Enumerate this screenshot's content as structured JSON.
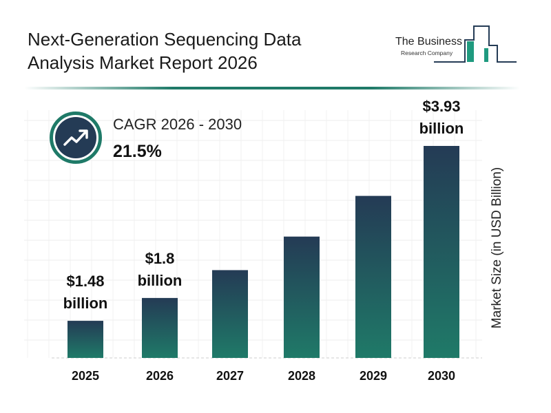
{
  "header": {
    "title_line1": "Next-Generation Sequencing Data",
    "title_line2": "Analysis Market Report 2026"
  },
  "logo": {
    "line1": "The Business",
    "line2": "Research Company"
  },
  "cagr": {
    "label": "CAGR 2026 - 2030",
    "value": "21.5%",
    "icon": "trend-up-arrow-icon"
  },
  "colors": {
    "bar_top": "#243b55",
    "bar_bottom": "#1f7a68",
    "accent": "#1f7a68"
  },
  "chart_data": {
    "type": "bar",
    "categories": [
      "2025",
      "2026",
      "2027",
      "2028",
      "2029",
      "2030"
    ],
    "values": [
      1.48,
      1.8,
      2.19,
      2.66,
      3.23,
      3.93
    ],
    "data_labels": [
      {
        "index": 0,
        "value": "$1.48",
        "unit": "billion"
      },
      {
        "index": 1,
        "value": "$1.8",
        "unit": "billion"
      },
      {
        "index": 5,
        "value": "$3.93",
        "unit": "billion"
      }
    ],
    "labeled": [
      true,
      true,
      false,
      false,
      false,
      true
    ],
    "xlabel": "",
    "ylabel": "Market Size (in USD Billion)",
    "ylim": [
      0.96,
      4.2
    ],
    "grid": true
  }
}
